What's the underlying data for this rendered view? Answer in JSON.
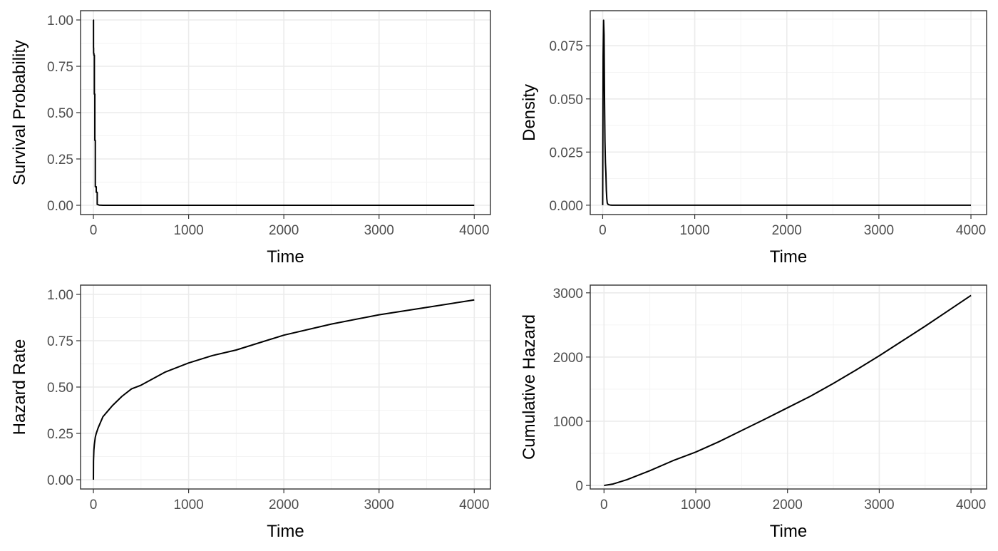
{
  "chart_data": [
    {
      "id": "survival",
      "type": "line",
      "xlabel": "Time",
      "ylabel": "Survival Probability",
      "xlim": [
        -135,
        4170
      ],
      "ylim": [
        -0.05,
        1.05
      ],
      "xticks": [
        0,
        1000,
        2000,
        3000,
        4000
      ],
      "xtick_labels": [
        "0",
        "1000",
        "2000",
        "3000",
        "4000"
      ],
      "yticks": [
        0,
        0.25,
        0.5,
        0.75,
        1
      ],
      "ytick_labels": [
        "0.00",
        "0.25",
        "0.50",
        "0.75",
        "1.00"
      ],
      "grid": true,
      "series": [
        {
          "x": [
            0,
            1,
            1,
            2,
            2,
            5,
            5,
            10,
            10,
            15,
            15,
            20,
            20,
            30,
            30,
            40,
            40,
            60,
            100,
            500,
            1000,
            2000,
            3000,
            4000
          ],
          "y": [
            1.0,
            1.0,
            0.85,
            0.85,
            0.82,
            0.82,
            0.81,
            0.81,
            0.6,
            0.6,
            0.35,
            0.35,
            0.1,
            0.1,
            0.07,
            0.07,
            0.005,
            0.001,
            0,
            0,
            0,
            0,
            0,
            0
          ]
        }
      ]
    },
    {
      "id": "density",
      "type": "line",
      "xlabel": "Time",
      "ylabel": "Density",
      "xlim": [
        -135,
        4170
      ],
      "ylim": [
        -0.0044,
        0.0915
      ],
      "xticks": [
        0,
        1000,
        2000,
        3000,
        4000
      ],
      "xtick_labels": [
        "0",
        "1000",
        "2000",
        "3000",
        "4000"
      ],
      "yticks": [
        0,
        0.025,
        0.05,
        0.075
      ],
      "ytick_labels": [
        "0.000",
        "0.025",
        "0.050",
        "0.075"
      ],
      "grid": true,
      "series": [
        {
          "x": [
            0,
            5,
            10,
            15,
            20,
            25,
            30,
            35,
            40,
            45,
            50,
            60,
            80,
            100,
            500,
            1000,
            2000,
            3000,
            4000
          ],
          "y": [
            0.0,
            0.07,
            0.087,
            0.08,
            0.05,
            0.03,
            0.02,
            0.015,
            0.007,
            0.003,
            0.001,
            0.0003,
            0.0001,
            0,
            0,
            0,
            0,
            0,
            0
          ]
        }
      ]
    },
    {
      "id": "hazard",
      "type": "line",
      "xlabel": "Time",
      "ylabel": "Hazard Rate",
      "xlim": [
        -135,
        4170
      ],
      "ylim": [
        -0.05,
        1.05
      ],
      "xticks": [
        0,
        1000,
        2000,
        3000,
        4000
      ],
      "xtick_labels": [
        "0",
        "1000",
        "2000",
        "3000",
        "4000"
      ],
      "yticks": [
        0,
        0.25,
        0.5,
        0.75,
        1
      ],
      "ytick_labels": [
        "0.00",
        "0.25",
        "0.50",
        "0.75",
        "1.00"
      ],
      "grid": true,
      "series": [
        {
          "x": [
            0,
            1,
            5,
            10,
            20,
            30,
            50,
            75,
            100,
            150,
            200,
            300,
            400,
            500,
            750,
            1000,
            1250,
            1500,
            2000,
            2500,
            3000,
            3500,
            4000
          ],
          "y": [
            0.0,
            0.1,
            0.16,
            0.19,
            0.23,
            0.25,
            0.28,
            0.31,
            0.34,
            0.37,
            0.4,
            0.45,
            0.49,
            0.51,
            0.58,
            0.63,
            0.67,
            0.7,
            0.78,
            0.84,
            0.89,
            0.93,
            0.97
          ]
        }
      ]
    },
    {
      "id": "cumulative-hazard",
      "type": "line",
      "xlabel": "Time",
      "ylabel": "Cumulative Hazard",
      "xlim": [
        -150,
        4170
      ],
      "ylim": [
        -55,
        3120
      ],
      "xticks": [
        0,
        1000,
        2000,
        3000,
        4000
      ],
      "xtick_labels": [
        "0",
        "1000",
        "2000",
        "3000",
        "4000"
      ],
      "yticks": [
        0,
        1000,
        2000,
        3000
      ],
      "ytick_labels": [
        "0",
        "1000",
        "2000",
        "3000"
      ],
      "grid": true,
      "series": [
        {
          "x": [
            0,
            100,
            250,
            500,
            750,
            1000,
            1250,
            1500,
            1750,
            2000,
            2250,
            2500,
            2750,
            3000,
            3250,
            3500,
            3750,
            4000
          ],
          "y": [
            0,
            23,
            90,
            230,
            385,
            520,
            680,
            855,
            1030,
            1210,
            1390,
            1590,
            1800,
            2020,
            2250,
            2480,
            2720,
            2960
          ]
        }
      ]
    }
  ]
}
